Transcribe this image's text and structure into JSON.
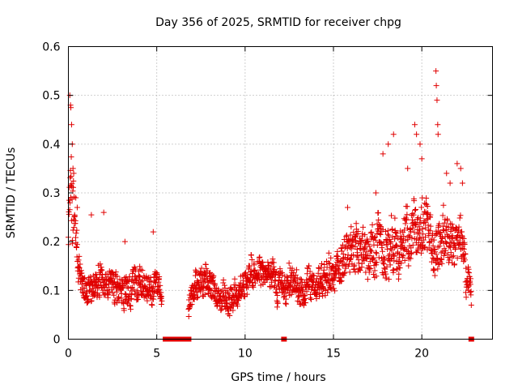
{
  "chart_data": {
    "type": "scatter",
    "title": "Day 356 of 2025, SRMTID for receiver chpg",
    "xlabel": "GPS time / hours",
    "ylabel": "SRMTID / TECUs",
    "xlim": [
      0,
      24
    ],
    "ylim": [
      0,
      0.6
    ],
    "x_ticks": [
      0,
      5,
      10,
      15,
      20
    ],
    "y_ticks": [
      0,
      0.1,
      0.2,
      0.3,
      0.4,
      0.5,
      0.6
    ],
    "y_tick_labels": [
      "0",
      "0.1",
      "0.2",
      "0.3",
      "0.4",
      "0.5",
      "0.6"
    ],
    "grid": true,
    "marker": "plus",
    "color": "#e00000",
    "series": [
      {
        "name": "SRMTID",
        "profile": [
          [
            0.0,
            0.2,
            0.06
          ],
          [
            0.15,
            0.3,
            0.15
          ],
          [
            0.35,
            0.24,
            0.06
          ],
          [
            0.6,
            0.14,
            0.05
          ],
          [
            1.0,
            0.1,
            0.04
          ],
          [
            2.0,
            0.12,
            0.05
          ],
          [
            3.0,
            0.1,
            0.05
          ],
          [
            4.0,
            0.11,
            0.05
          ],
          [
            5.0,
            0.1,
            0.04
          ],
          [
            5.3,
            0.09,
            0.02
          ],
          [
            6.7,
            0.06,
            0.03
          ],
          [
            7.2,
            0.11,
            0.04
          ],
          [
            7.8,
            0.13,
            0.05
          ],
          [
            8.5,
            0.09,
            0.04
          ],
          [
            9.5,
            0.09,
            0.04
          ],
          [
            10.5,
            0.13,
            0.05
          ],
          [
            11.5,
            0.14,
            0.05
          ],
          [
            12.5,
            0.11,
            0.05
          ],
          [
            13.5,
            0.1,
            0.05
          ],
          [
            15.0,
            0.13,
            0.06
          ],
          [
            16.0,
            0.18,
            0.07
          ],
          [
            17.0,
            0.18,
            0.07
          ],
          [
            18.0,
            0.2,
            0.08
          ],
          [
            19.0,
            0.2,
            0.08
          ],
          [
            20.0,
            0.22,
            0.09
          ],
          [
            21.0,
            0.2,
            0.08
          ],
          [
            22.0,
            0.2,
            0.08
          ],
          [
            22.5,
            0.15,
            0.06
          ],
          [
            22.8,
            0.1,
            0.04
          ]
        ],
        "spikes": [
          [
            0.08,
            0.5
          ],
          [
            0.12,
            0.48
          ],
          [
            0.14,
            0.475
          ],
          [
            0.18,
            0.44
          ],
          [
            0.22,
            0.4
          ],
          [
            0.26,
            0.35
          ],
          [
            0.3,
            0.34
          ],
          [
            0.42,
            0.29
          ],
          [
            0.5,
            0.27
          ],
          [
            1.3,
            0.255
          ],
          [
            2.0,
            0.26
          ],
          [
            3.2,
            0.2
          ],
          [
            4.8,
            0.22
          ],
          [
            15.8,
            0.27
          ],
          [
            17.4,
            0.3
          ],
          [
            17.8,
            0.38
          ],
          [
            18.1,
            0.4
          ],
          [
            18.4,
            0.42
          ],
          [
            19.2,
            0.35
          ],
          [
            19.6,
            0.44
          ],
          [
            19.7,
            0.42
          ],
          [
            19.9,
            0.4
          ],
          [
            20.0,
            0.37
          ],
          [
            20.8,
            0.55
          ],
          [
            20.82,
            0.52
          ],
          [
            20.86,
            0.49
          ],
          [
            20.9,
            0.44
          ],
          [
            20.92,
            0.42
          ],
          [
            21.4,
            0.34
          ],
          [
            21.6,
            0.32
          ],
          [
            22.0,
            0.36
          ],
          [
            22.2,
            0.35
          ],
          [
            22.3,
            0.32
          ]
        ],
        "zero_points": [
          5.5,
          5.6,
          5.9,
          6.0,
          6.2,
          6.3,
          6.6,
          6.7,
          6.8,
          12.2,
          22.8
        ],
        "gaps": [
          [
            5.3,
            6.8
          ]
        ],
        "end": 22.8
      }
    ]
  }
}
